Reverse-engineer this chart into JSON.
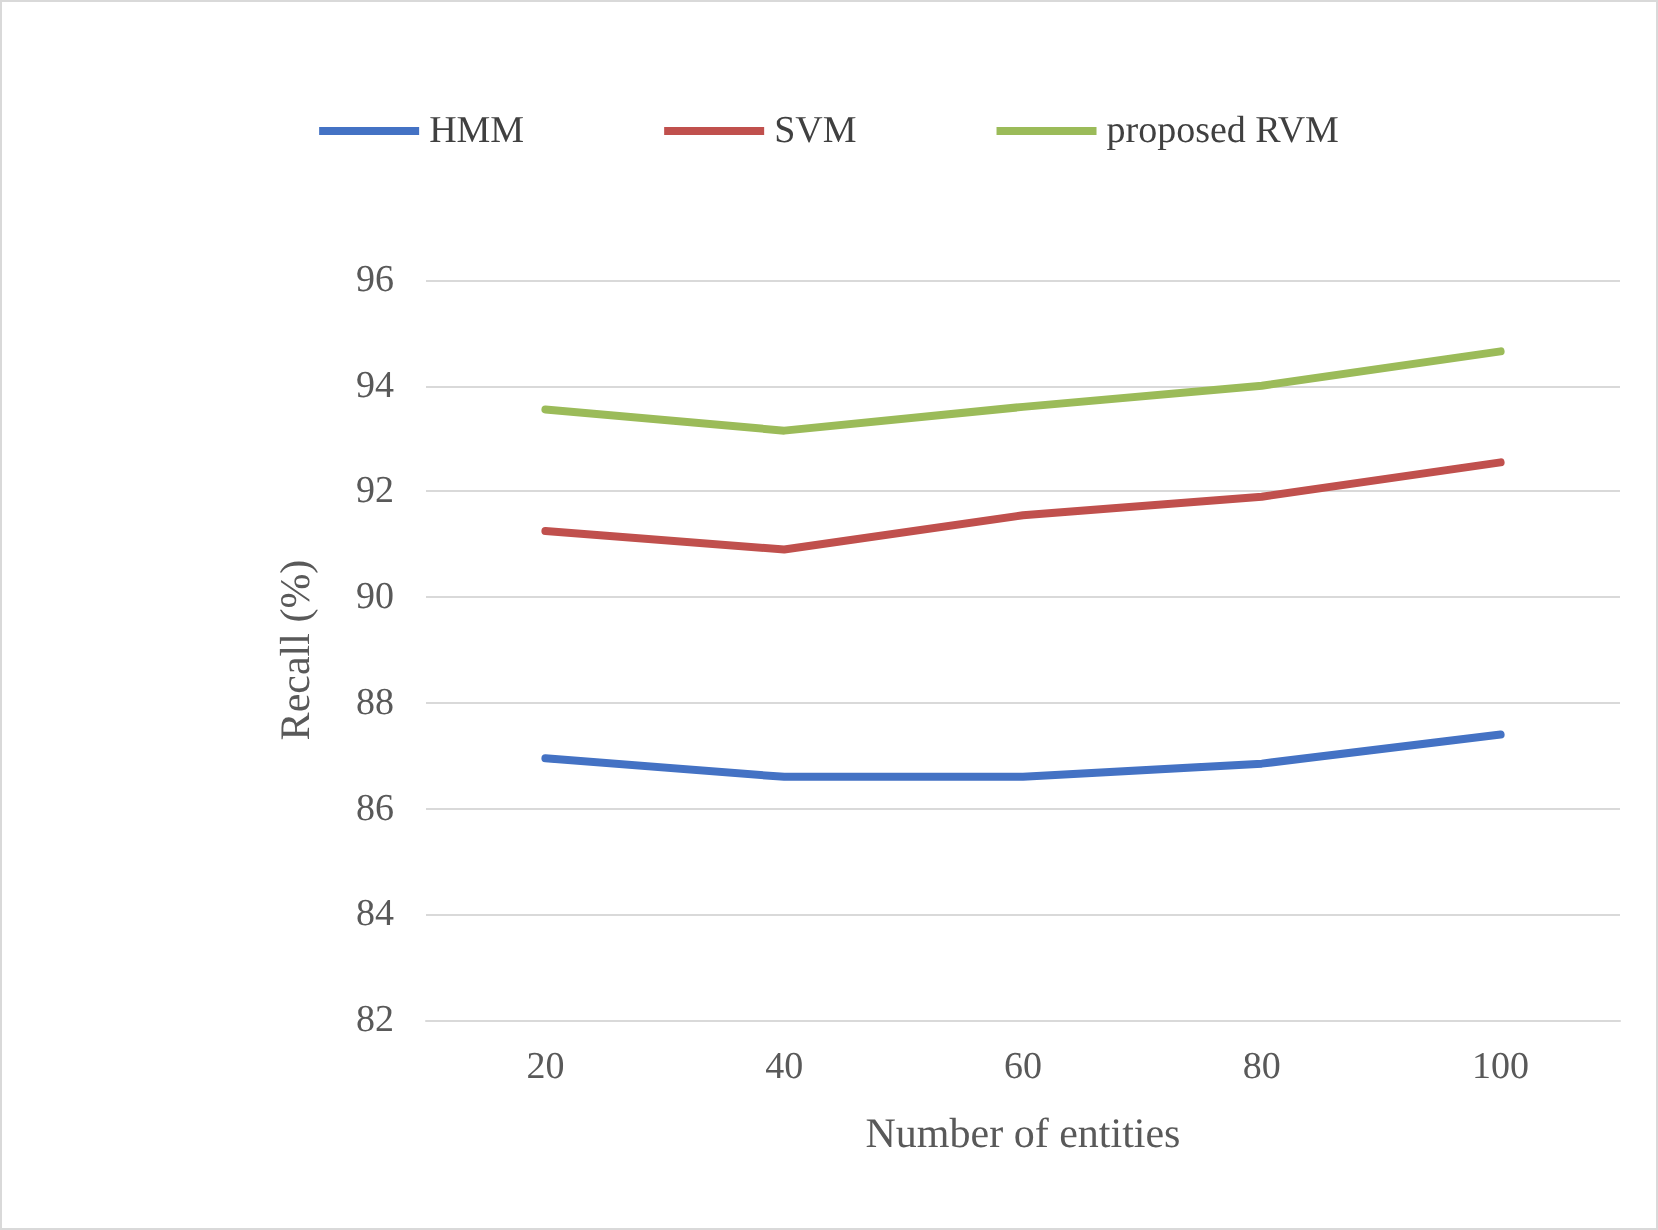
{
  "chart_data": {
    "type": "line",
    "xlabel": "Number of entities",
    "ylabel": "Recall (%)",
    "categories": [
      "20",
      "40",
      "60",
      "80",
      "100"
    ],
    "series": [
      {
        "name": "HMM",
        "color": "#4472c4",
        "values": [
          86.95,
          86.6,
          86.6,
          86.85,
          87.4
        ]
      },
      {
        "name": "SVM",
        "color": "#c0504d",
        "values": [
          91.25,
          90.9,
          91.55,
          91.9,
          92.55
        ]
      },
      {
        "name": "proposed RVM",
        "color": "#9bbb59",
        "values": [
          93.55,
          93.15,
          93.6,
          94.0,
          94.65
        ]
      }
    ],
    "ylim": [
      82,
      96
    ],
    "yticks": [
      82,
      84,
      86,
      88,
      90,
      92,
      94,
      96
    ],
    "grid": "y",
    "legend": "top",
    "marker": "none",
    "line_style": "solid"
  }
}
